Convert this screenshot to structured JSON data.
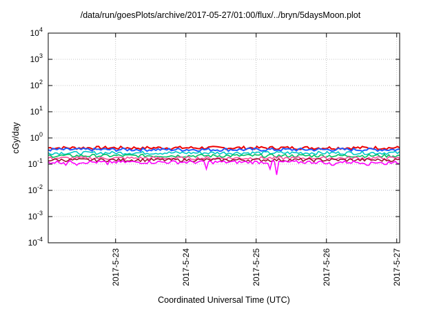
{
  "chart_data": {
    "type": "line",
    "title": "/data/run/goesPlots/archive/2017-05-27/01:00/flux/../bryn/5daysMoon.plot",
    "xlabel": "Coordinated Universal Time (UTC)",
    "ylabel": "cGy/day",
    "x_range": [
      "2017-05-22 01:00",
      "2017-05-27 01:00"
    ],
    "xticks": [
      "2017-5-23",
      "2017-5-24",
      "2017-5-25",
      "2017-5-26",
      "2017-5-27"
    ],
    "y_scale": "log",
    "ylim": [
      0.0001,
      10000
    ],
    "yticks": [
      {
        "base": "10",
        "exp": "4"
      },
      {
        "base": "10",
        "exp": "3"
      },
      {
        "base": "10",
        "exp": "2"
      },
      {
        "base": "10",
        "exp": "1"
      },
      {
        "base": "10",
        "exp": "0"
      },
      {
        "base": "10",
        "exp": "-1"
      },
      {
        "base": "10",
        "exp": "-2"
      },
      {
        "base": "10",
        "exp": "-3"
      },
      {
        "base": "10",
        "exp": "-4"
      }
    ],
    "grid": true,
    "legend": "none",
    "series": [
      {
        "color": "#ee0000",
        "level": 0.42,
        "dips": [
          0.0,
          0.34,
          0.73
        ]
      },
      {
        "color": "#1e5bff",
        "level": 0.36,
        "dips": [
          0.0,
          0.34,
          0.73
        ]
      },
      {
        "color": "#00c8c8",
        "level": 0.27,
        "dips": [
          0.0,
          0.34,
          0.73
        ]
      },
      {
        "color": "#00c060",
        "level": 0.21,
        "dips": [
          0.0,
          0.34,
          0.73
        ]
      },
      {
        "color": "#ff4fa0",
        "level": 0.17,
        "dips": [
          0.0,
          0.34,
          0.73
        ]
      },
      {
        "color": "#9a1030",
        "level": 0.145,
        "dips": [
          0.0,
          0.34,
          0.73
        ]
      },
      {
        "color": "#ff00ff",
        "level": 0.12,
        "dips": [
          0.07,
          0.07,
          0.075,
          0.09,
          0.09,
          0.05,
          0.05,
          0.03,
          0.08
        ]
      }
    ]
  }
}
